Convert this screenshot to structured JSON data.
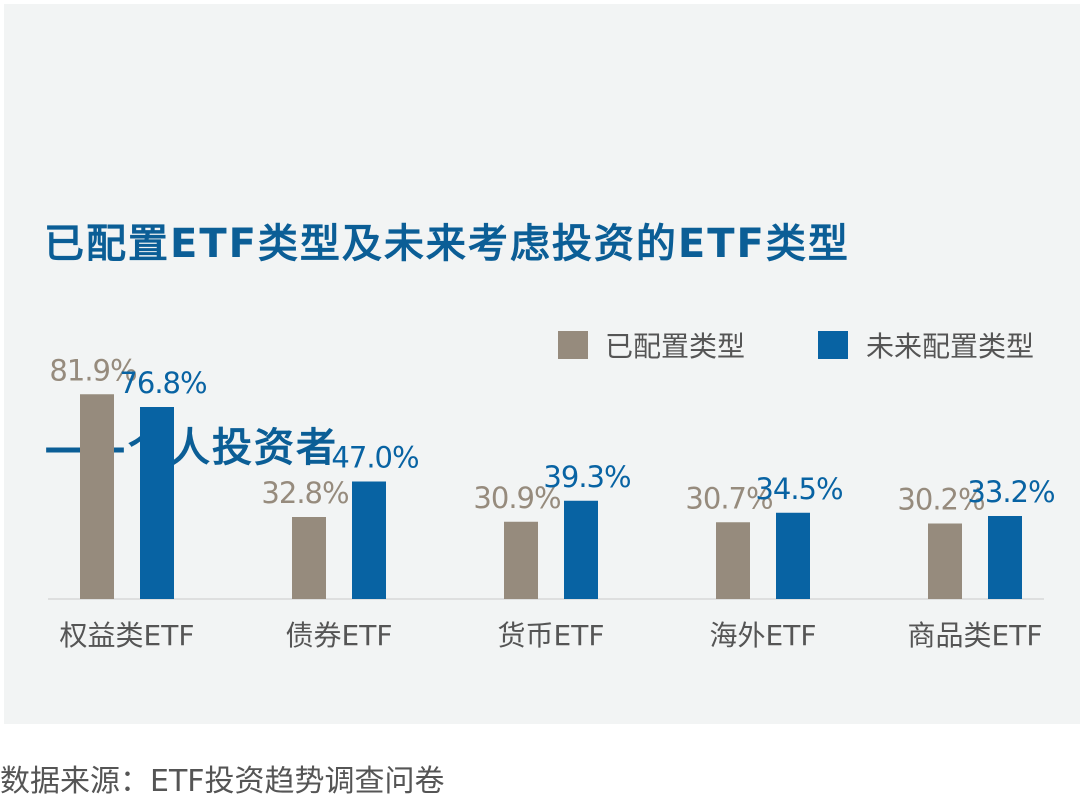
{
  "title_lines": [
    "已配置ETF类型及未来考虑投资的ETF类型",
    "——个人投资者"
  ],
  "source": "数据来源：ETF投资趋势调查问卷",
  "colors": {
    "configured": "#968b7d",
    "future": "#0863a3",
    "title": "#0b5e96",
    "axis_label": "#555555",
    "baseline": "#d8d8d8"
  },
  "chart_data": {
    "type": "bar",
    "title": "已配置ETF类型及未来考虑投资的ETF类型——个人投资者",
    "categories": [
      "权益类ETF",
      "债券ETF",
      "货币ETF",
      "海外ETF",
      "商品类ETF"
    ],
    "series": [
      {
        "name": "已配置类型",
        "values": [
          81.9,
          32.8,
          30.9,
          30.7,
          30.2
        ],
        "labels": [
          "81.9%",
          "32.8%",
          "30.9%",
          "30.7%",
          "30.2%"
        ],
        "color": "#968b7d"
      },
      {
        "name": "未来配置类型",
        "values": [
          76.8,
          47.0,
          39.3,
          34.5,
          33.2
        ],
        "labels": [
          "76.8%",
          "47.0%",
          "39.3%",
          "34.5%",
          "33.2%"
        ],
        "color": "#0863a3"
      }
    ],
    "unit": "%",
    "ylim": [
      0,
      100
    ],
    "grid": false,
    "legend_position": "top-right"
  }
}
